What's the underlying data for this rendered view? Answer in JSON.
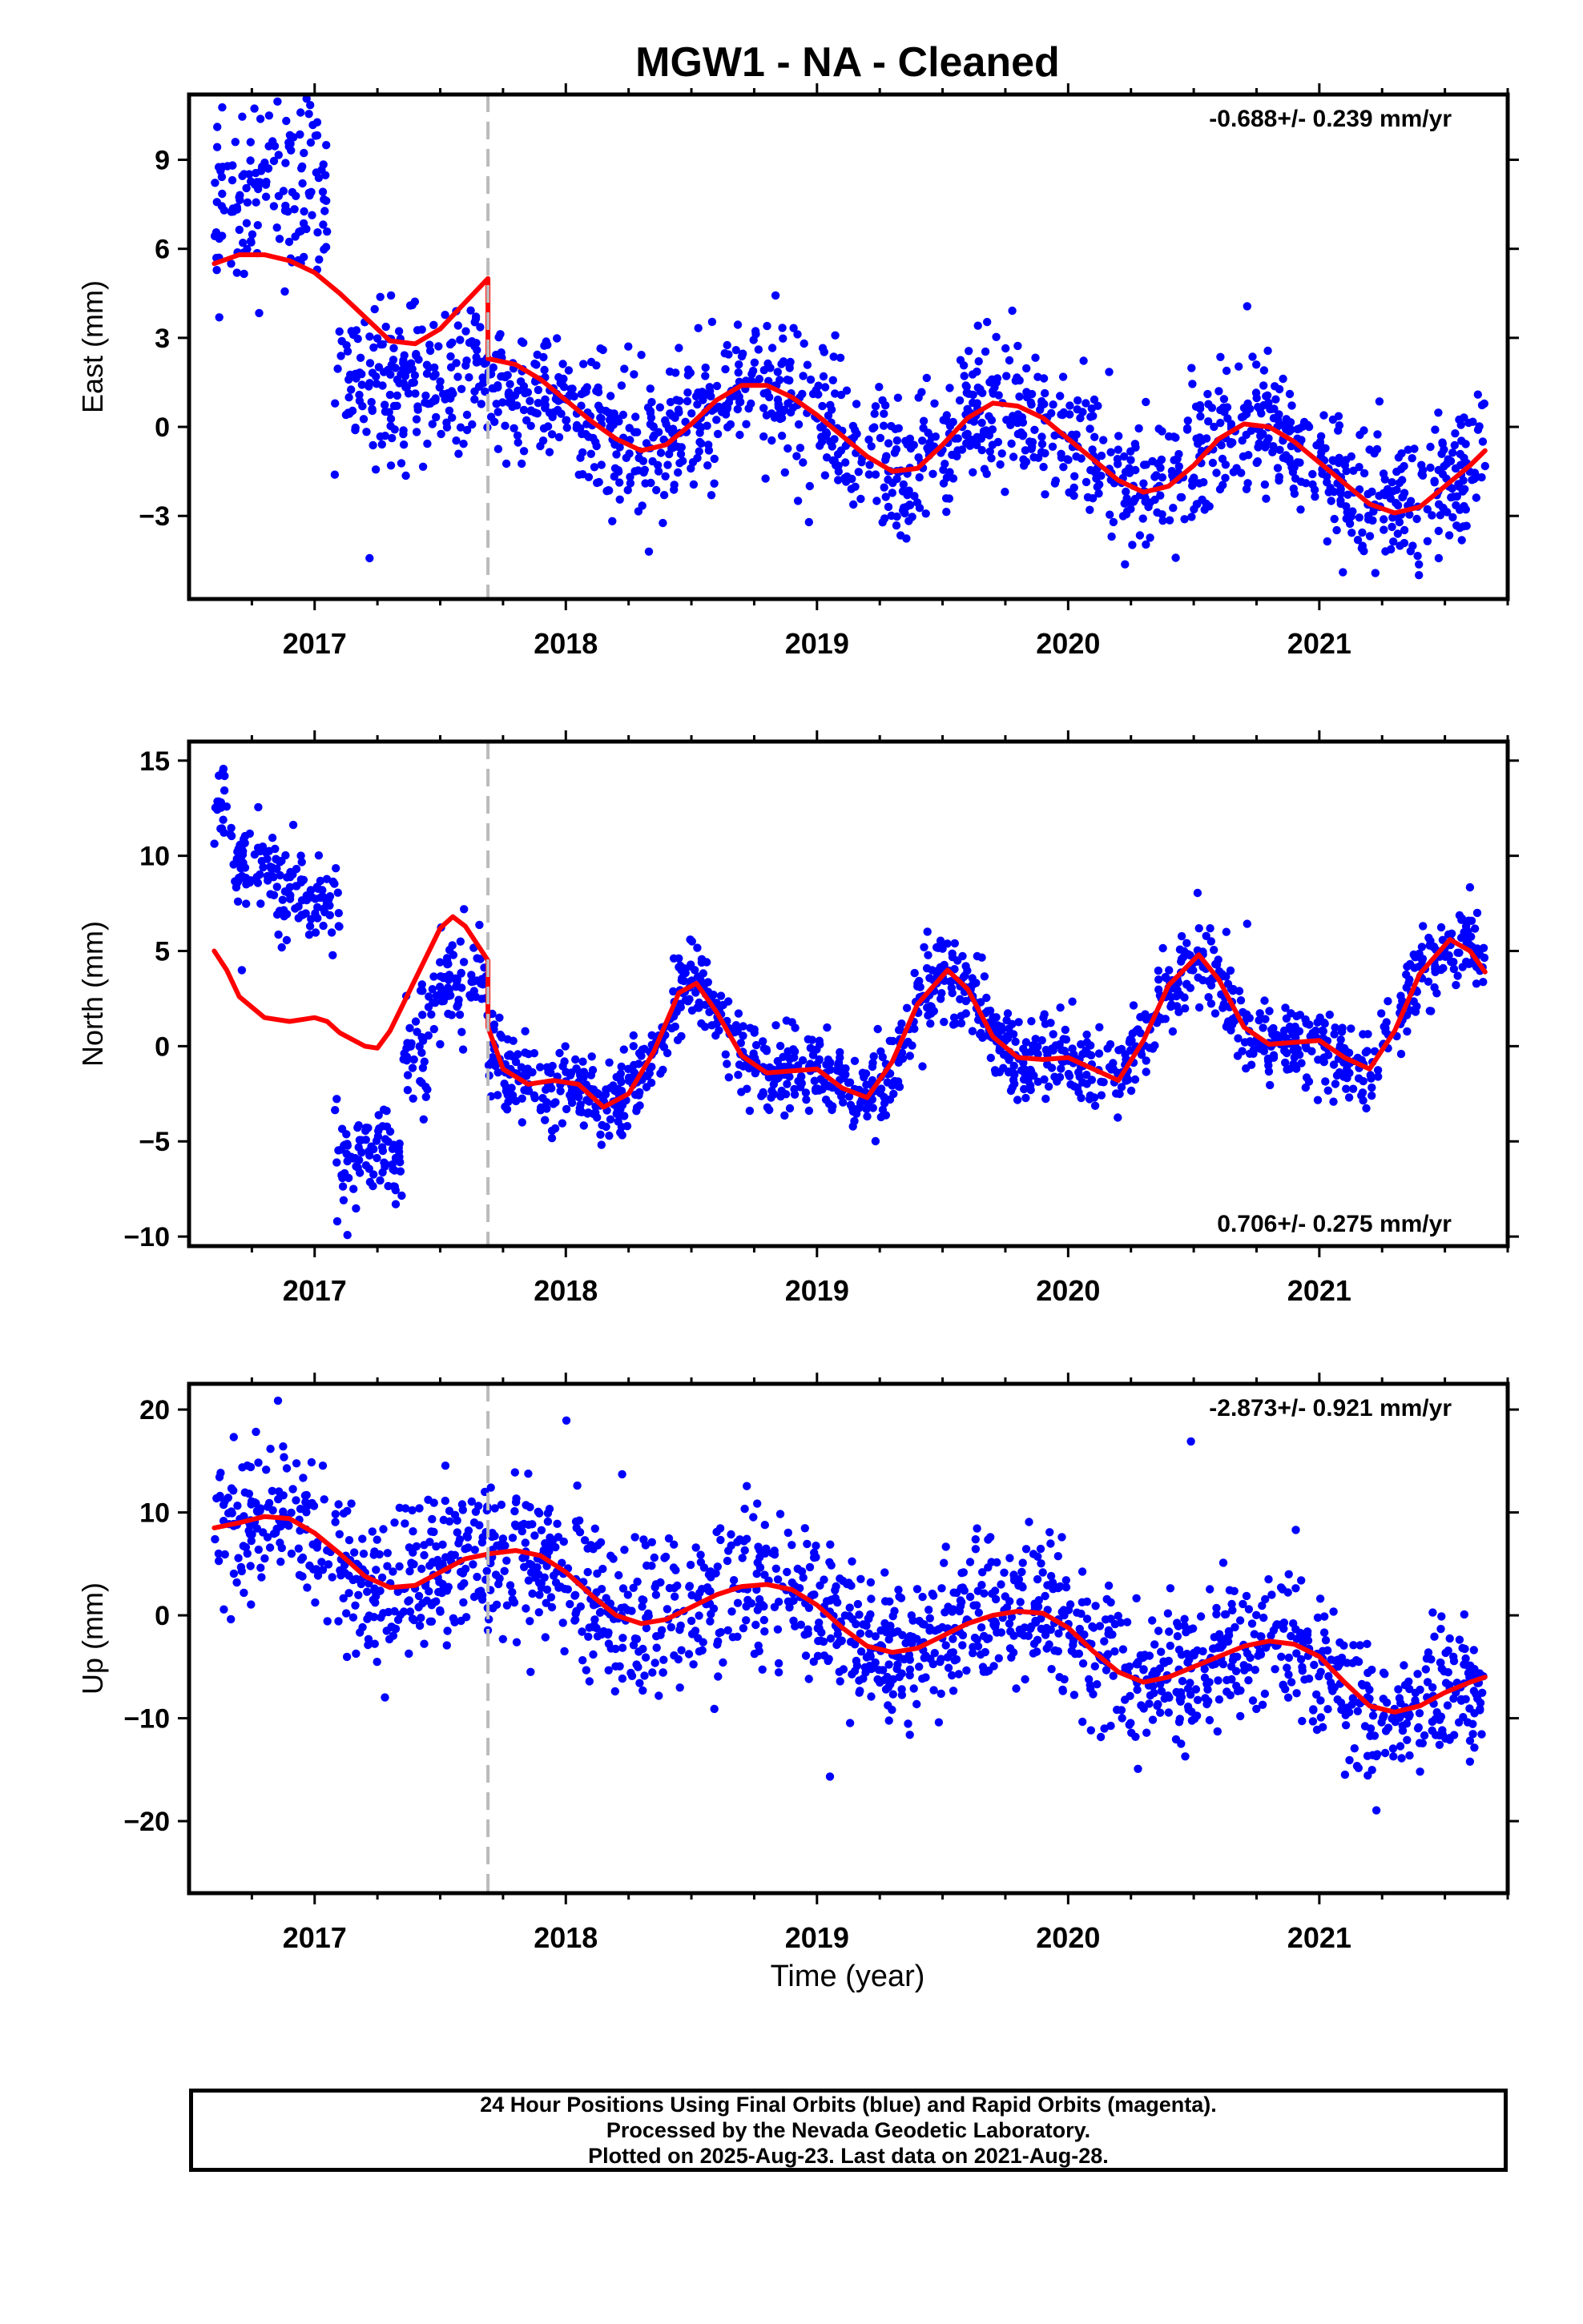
{
  "title": "MGW1  - NA - Cleaned",
  "xaxis": {
    "label": "Time (year)",
    "ticks": [
      "2017",
      "2018",
      "2019",
      "2020",
      "2021"
    ],
    "range": [
      2016.5,
      2021.75
    ]
  },
  "offset_marker": {
    "x": 2017.69,
    "style": "dashed",
    "color": "#bbbbbb"
  },
  "colors": {
    "observations": "#0000ff",
    "model": "#ff0000",
    "offset_line": "#bbbbbb",
    "frame": "#000000"
  },
  "footer": {
    "line1": "24 Hour Positions Using Final Orbits (blue) and Rapid Orbits (magenta).",
    "line2": "Processed by the Nevada Geodetic Laboratory.",
    "line3": "Plotted on 2025-Aug-23. Last data on 2021-Aug-28."
  },
  "chart_data": [
    {
      "type": "scatter",
      "component": "East",
      "ylabel": "East (mm)",
      "yticks": [
        "9",
        "6",
        "3",
        "0",
        "−3"
      ],
      "ylim": [
        -5.8,
        11.2
      ],
      "rate_label": "-0.688+/- 0.239 mm/yr",
      "rate_position": "top-right",
      "model_curve": [
        [
          2016.6,
          5.5
        ],
        [
          2016.7,
          5.8
        ],
        [
          2016.8,
          5.8
        ],
        [
          2016.9,
          5.6
        ],
        [
          2017.0,
          5.2
        ],
        [
          2017.1,
          4.5
        ],
        [
          2017.2,
          3.7
        ],
        [
          2017.3,
          2.9
        ],
        [
          2017.4,
          2.8
        ],
        [
          2017.5,
          3.3
        ],
        [
          2017.6,
          4.2
        ],
        [
          2017.69,
          5.0
        ],
        [
          2017.69,
          2.3
        ],
        [
          2017.8,
          2.1
        ],
        [
          2017.9,
          1.6
        ],
        [
          2018.0,
          0.9
        ],
        [
          2018.1,
          0.2
        ],
        [
          2018.2,
          -0.4
        ],
        [
          2018.3,
          -0.8
        ],
        [
          2018.4,
          -0.6
        ],
        [
          2018.5,
          0.1
        ],
        [
          2018.6,
          0.9
        ],
        [
          2018.7,
          1.4
        ],
        [
          2018.8,
          1.4
        ],
        [
          2018.9,
          1.0
        ],
        [
          2019.0,
          0.4
        ],
        [
          2019.1,
          -0.3
        ],
        [
          2019.2,
          -1.0
        ],
        [
          2019.3,
          -1.5
        ],
        [
          2019.4,
          -1.4
        ],
        [
          2019.5,
          -0.6
        ],
        [
          2019.6,
          0.3
        ],
        [
          2019.7,
          0.8
        ],
        [
          2019.8,
          0.7
        ],
        [
          2019.9,
          0.3
        ],
        [
          2020.0,
          -0.4
        ],
        [
          2020.1,
          -1.1
        ],
        [
          2020.2,
          -1.8
        ],
        [
          2020.3,
          -2.2
        ],
        [
          2020.4,
          -2.0
        ],
        [
          2020.5,
          -1.3
        ],
        [
          2020.6,
          -0.4
        ],
        [
          2020.7,
          0.1
        ],
        [
          2020.8,
          0.0
        ],
        [
          2020.9,
          -0.5
        ],
        [
          2021.0,
          -1.2
        ],
        [
          2021.1,
          -1.9
        ],
        [
          2021.2,
          -2.6
        ],
        [
          2021.3,
          -2.9
        ],
        [
          2021.4,
          -2.7
        ],
        [
          2021.5,
          -2.0
        ],
        [
          2021.6,
          -1.3
        ],
        [
          2021.66,
          -0.8
        ]
      ],
      "scatter_bands": [
        [
          2016.6,
          2017.05,
          7.9,
          1.4
        ],
        [
          2017.08,
          2017.69,
          1.5,
          1.3
        ],
        [
          2017.69,
          2018.0,
          1.2,
          1.1
        ],
        [
          2018.0,
          2021.66,
          "model",
          1.2
        ]
      ]
    },
    {
      "type": "scatter",
      "component": "North",
      "ylabel": "North (mm)",
      "yticks": [
        "15",
        "10",
        "5",
        "0",
        "−5",
        "−10"
      ],
      "ylim": [
        -10.5,
        16.0
      ],
      "rate_label": "0.706+/- 0.275 mm/yr",
      "rate_position": "bottom-right",
      "model_curve": [
        [
          2016.6,
          5.0
        ],
        [
          2016.65,
          4.0
        ],
        [
          2016.7,
          2.6
        ],
        [
          2016.8,
          1.5
        ],
        [
          2016.9,
          1.3
        ],
        [
          2017.0,
          1.5
        ],
        [
          2017.05,
          1.3
        ],
        [
          2017.1,
          0.7
        ],
        [
          2017.2,
          0.0
        ],
        [
          2017.25,
          -0.1
        ],
        [
          2017.3,
          0.8
        ],
        [
          2017.4,
          3.5
        ],
        [
          2017.5,
          6.2
        ],
        [
          2017.55,
          6.8
        ],
        [
          2017.6,
          6.3
        ],
        [
          2017.69,
          4.5
        ],
        [
          2017.69,
          1.0
        ],
        [
          2017.75,
          -1.2
        ],
        [
          2017.85,
          -2.0
        ],
        [
          2017.95,
          -1.8
        ],
        [
          2018.05,
          -2.0
        ],
        [
          2018.15,
          -3.2
        ],
        [
          2018.25,
          -2.5
        ],
        [
          2018.35,
          -0.3
        ],
        [
          2018.45,
          2.8
        ],
        [
          2018.52,
          3.3
        ],
        [
          2018.6,
          1.8
        ],
        [
          2018.7,
          -0.5
        ],
        [
          2018.8,
          -1.4
        ],
        [
          2018.9,
          -1.3
        ],
        [
          2019.0,
          -1.2
        ],
        [
          2019.1,
          -2.2
        ],
        [
          2019.2,
          -2.7
        ],
        [
          2019.3,
          -0.8
        ],
        [
          2019.4,
          2.2
        ],
        [
          2019.52,
          4.0
        ],
        [
          2019.6,
          3.0
        ],
        [
          2019.7,
          0.5
        ],
        [
          2019.8,
          -0.6
        ],
        [
          2019.9,
          -0.7
        ],
        [
          2020.0,
          -0.6
        ],
        [
          2020.1,
          -1.2
        ],
        [
          2020.2,
          -1.8
        ],
        [
          2020.3,
          0.3
        ],
        [
          2020.4,
          3.2
        ],
        [
          2020.52,
          4.8
        ],
        [
          2020.6,
          3.5
        ],
        [
          2020.7,
          1.0
        ],
        [
          2020.8,
          0.1
        ],
        [
          2020.9,
          0.2
        ],
        [
          2021.0,
          0.3
        ],
        [
          2021.1,
          -0.6
        ],
        [
          2021.2,
          -1.2
        ],
        [
          2021.3,
          0.8
        ],
        [
          2021.4,
          3.8
        ],
        [
          2021.52,
          5.6
        ],
        [
          2021.6,
          5.0
        ],
        [
          2021.66,
          3.9
        ]
      ],
      "scatter_bands": [
        [
          2016.6,
          2016.65,
          12.8,
          1.2
        ],
        [
          2016.65,
          2016.85,
          9.5,
          1.3
        ],
        [
          2016.85,
          2017.1,
          7.8,
          1.2
        ],
        [
          2017.08,
          2017.15,
          -6.5,
          1.5
        ],
        [
          2017.15,
          2017.35,
          -5.8,
          1.4
        ],
        [
          2017.35,
          2017.45,
          -0.5,
          2.0
        ],
        [
          2017.45,
          2017.69,
          3.3,
          1.3
        ],
        [
          2017.69,
          2017.75,
          -1.0,
          1.3
        ],
        [
          2017.75,
          2021.66,
          "model",
          1.1
        ]
      ]
    },
    {
      "type": "scatter",
      "component": "Up",
      "ylabel": "Up (mm)",
      "yticks": [
        "20",
        "10",
        "0",
        "−10",
        "−20"
      ],
      "ylim": [
        -27,
        22.5
      ],
      "rate_label": "-2.873+/- 0.921 mm/yr",
      "rate_position": "top-right",
      "model_curve": [
        [
          2016.6,
          8.5
        ],
        [
          2016.7,
          9.0
        ],
        [
          2016.8,
          9.6
        ],
        [
          2016.9,
          9.4
        ],
        [
          2017.0,
          8.0
        ],
        [
          2017.1,
          6.0
        ],
        [
          2017.2,
          3.8
        ],
        [
          2017.3,
          2.7
        ],
        [
          2017.4,
          2.9
        ],
        [
          2017.5,
          4.2
        ],
        [
          2017.6,
          5.5
        ],
        [
          2017.7,
          6.0
        ],
        [
          2017.8,
          6.3
        ],
        [
          2017.9,
          5.8
        ],
        [
          2018.0,
          4.2
        ],
        [
          2018.1,
          2.0
        ],
        [
          2018.2,
          0.0
        ],
        [
          2018.3,
          -0.8
        ],
        [
          2018.4,
          -0.4
        ],
        [
          2018.5,
          0.8
        ],
        [
          2018.6,
          2.0
        ],
        [
          2018.7,
          2.8
        ],
        [
          2018.8,
          3.0
        ],
        [
          2018.9,
          2.5
        ],
        [
          2019.0,
          1.0
        ],
        [
          2019.1,
          -1.2
        ],
        [
          2019.2,
          -3.0
        ],
        [
          2019.3,
          -3.6
        ],
        [
          2019.4,
          -3.2
        ],
        [
          2019.5,
          -2.0
        ],
        [
          2019.6,
          -0.8
        ],
        [
          2019.7,
          0.0
        ],
        [
          2019.8,
          0.4
        ],
        [
          2019.9,
          0.2
        ],
        [
          2020.0,
          -1.2
        ],
        [
          2020.1,
          -3.5
        ],
        [
          2020.2,
          -5.5
        ],
        [
          2020.3,
          -6.5
        ],
        [
          2020.4,
          -6.0
        ],
        [
          2020.5,
          -5.0
        ],
        [
          2020.6,
          -4.0
        ],
        [
          2020.7,
          -3.0
        ],
        [
          2020.8,
          -2.5
        ],
        [
          2020.9,
          -2.8
        ],
        [
          2021.0,
          -4.0
        ],
        [
          2021.1,
          -6.5
        ],
        [
          2021.2,
          -8.8
        ],
        [
          2021.3,
          -9.4
        ],
        [
          2021.4,
          -8.8
        ],
        [
          2021.5,
          -7.5
        ],
        [
          2021.6,
          -6.5
        ],
        [
          2021.66,
          -6.0
        ]
      ],
      "scatter_bands": [
        [
          2016.6,
          2021.66,
          "model",
          3.6
        ]
      ]
    }
  ]
}
